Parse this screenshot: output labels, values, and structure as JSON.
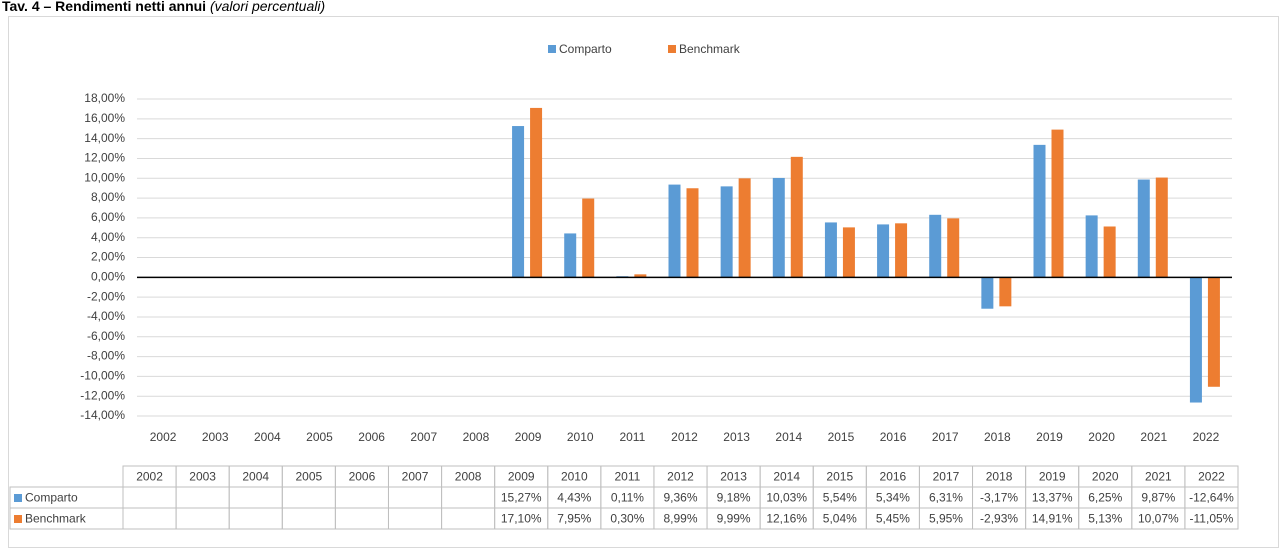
{
  "chart_data": {
    "type": "bar",
    "title": "Tav. 4 – Rendimenti netti annui",
    "subtitle": "(valori percentuali)",
    "categories": [
      "2002",
      "2003",
      "2004",
      "2005",
      "2006",
      "2007",
      "2008",
      "2009",
      "2010",
      "2011",
      "2012",
      "2013",
      "2014",
      "2015",
      "2016",
      "2017",
      "2018",
      "2019",
      "2020",
      "2021",
      "2022"
    ],
    "series": [
      {
        "name": "Comparto",
        "color": "#5b9bd5",
        "values": [
          null,
          null,
          null,
          null,
          null,
          null,
          null,
          15.27,
          4.43,
          0.11,
          9.36,
          9.18,
          10.03,
          5.54,
          5.34,
          6.31,
          -3.17,
          13.37,
          6.25,
          9.87,
          -12.64
        ],
        "value_labels": [
          null,
          null,
          null,
          null,
          null,
          null,
          null,
          "15,27%",
          "4,43%",
          "0,11%",
          "9,36%",
          "9,18%",
          "10,03%",
          "5,54%",
          "5,34%",
          "6,31%",
          "-3,17%",
          "13,37%",
          "6,25%",
          "9,87%",
          "-12,64%"
        ]
      },
      {
        "name": "Benchmark",
        "color": "#ed7d31",
        "values": [
          null,
          null,
          null,
          null,
          null,
          null,
          null,
          17.1,
          7.95,
          0.3,
          8.99,
          9.99,
          12.16,
          5.04,
          5.45,
          5.95,
          -2.93,
          14.91,
          5.13,
          10.07,
          -11.05
        ],
        "value_labels": [
          null,
          null,
          null,
          null,
          null,
          null,
          null,
          "17,10%",
          "7,95%",
          "0,30%",
          "8,99%",
          "9,99%",
          "12,16%",
          "5,04%",
          "5,45%",
          "5,95%",
          "-2,93%",
          "14,91%",
          "5,13%",
          "10,07%",
          "-11,05%"
        ]
      }
    ],
    "ylim": [
      -14,
      18
    ],
    "yticks": [
      {
        "value": -14,
        "label": "-14,00%"
      },
      {
        "value": -12,
        "label": "-12,00%"
      },
      {
        "value": -10,
        "label": "-10,00%"
      },
      {
        "value": -8,
        "label": "-8,00%"
      },
      {
        "value": -6,
        "label": "-6,00%"
      },
      {
        "value": -4,
        "label": "-4,00%"
      },
      {
        "value": -2,
        "label": "-2,00%"
      },
      {
        "value": 0,
        "label": "0,00%"
      },
      {
        "value": 2,
        "label": "2,00%"
      },
      {
        "value": 4,
        "label": "4,00%"
      },
      {
        "value": 6,
        "label": "6,00%"
      },
      {
        "value": 8,
        "label": "8,00%"
      },
      {
        "value": 10,
        "label": "10,00%"
      },
      {
        "value": 12,
        "label": "12,00%"
      },
      {
        "value": 14,
        "label": "14,00%"
      },
      {
        "value": 16,
        "label": "16,00%"
      },
      {
        "value": 18,
        "label": "18,00%"
      }
    ],
    "grid": true,
    "legend": "top"
  }
}
